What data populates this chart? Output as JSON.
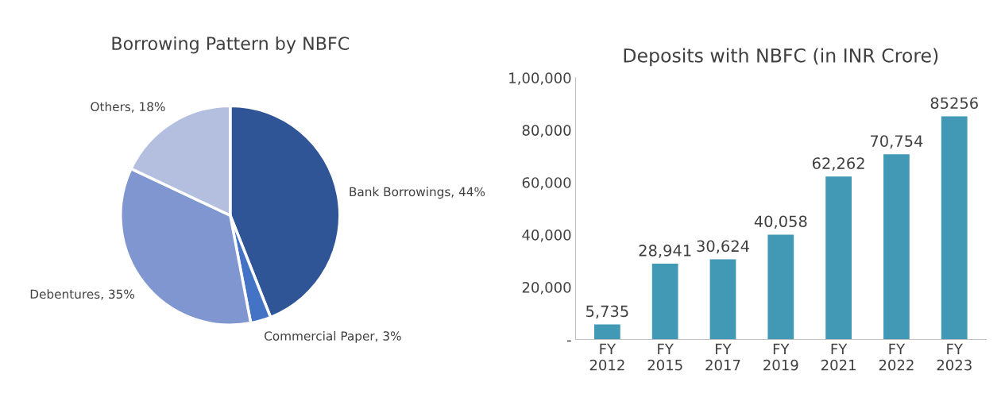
{
  "chart_data": [
    {
      "type": "pie",
      "title": "Borrowing Pattern by NBFC",
      "categories": [
        "Bank Borrowings",
        "Commercial Paper",
        "Debentures",
        "Others"
      ],
      "values": [
        44,
        3,
        35,
        18
      ],
      "value_labels": [
        "44%",
        "3%",
        "35%",
        "18%"
      ],
      "colors": [
        "#2f5597",
        "#4472c4",
        "#7f96d1",
        "#b4bfe0"
      ],
      "data_labels": true
    },
    {
      "type": "bar",
      "title": "Deposits with NBFC (in INR Crore)",
      "categories": [
        "FY 2012",
        "FY 2015",
        "FY 2017",
        "FY 2019",
        "FY 2021",
        "FY 2022",
        "FY 2023"
      ],
      "values": [
        5735,
        28941,
        30624,
        40058,
        62262,
        70754,
        85256
      ],
      "value_labels": [
        "5,735",
        "28,941",
        "30,624",
        "40,058",
        "62,262",
        "70,754",
        "85256"
      ],
      "color": "#4199b5",
      "ylim": [
        0,
        100000
      ],
      "yticks": [
        {
          "value": 0,
          "label": "-"
        },
        {
          "value": 20000,
          "label": "20,000"
        },
        {
          "value": 40000,
          "label": "40,000"
        },
        {
          "value": 60000,
          "label": "60,000"
        },
        {
          "value": 80000,
          "label": "80,000"
        },
        {
          "value": 100000,
          "label": "1,00,000"
        }
      ],
      "grid": false,
      "legend": false
    }
  ]
}
